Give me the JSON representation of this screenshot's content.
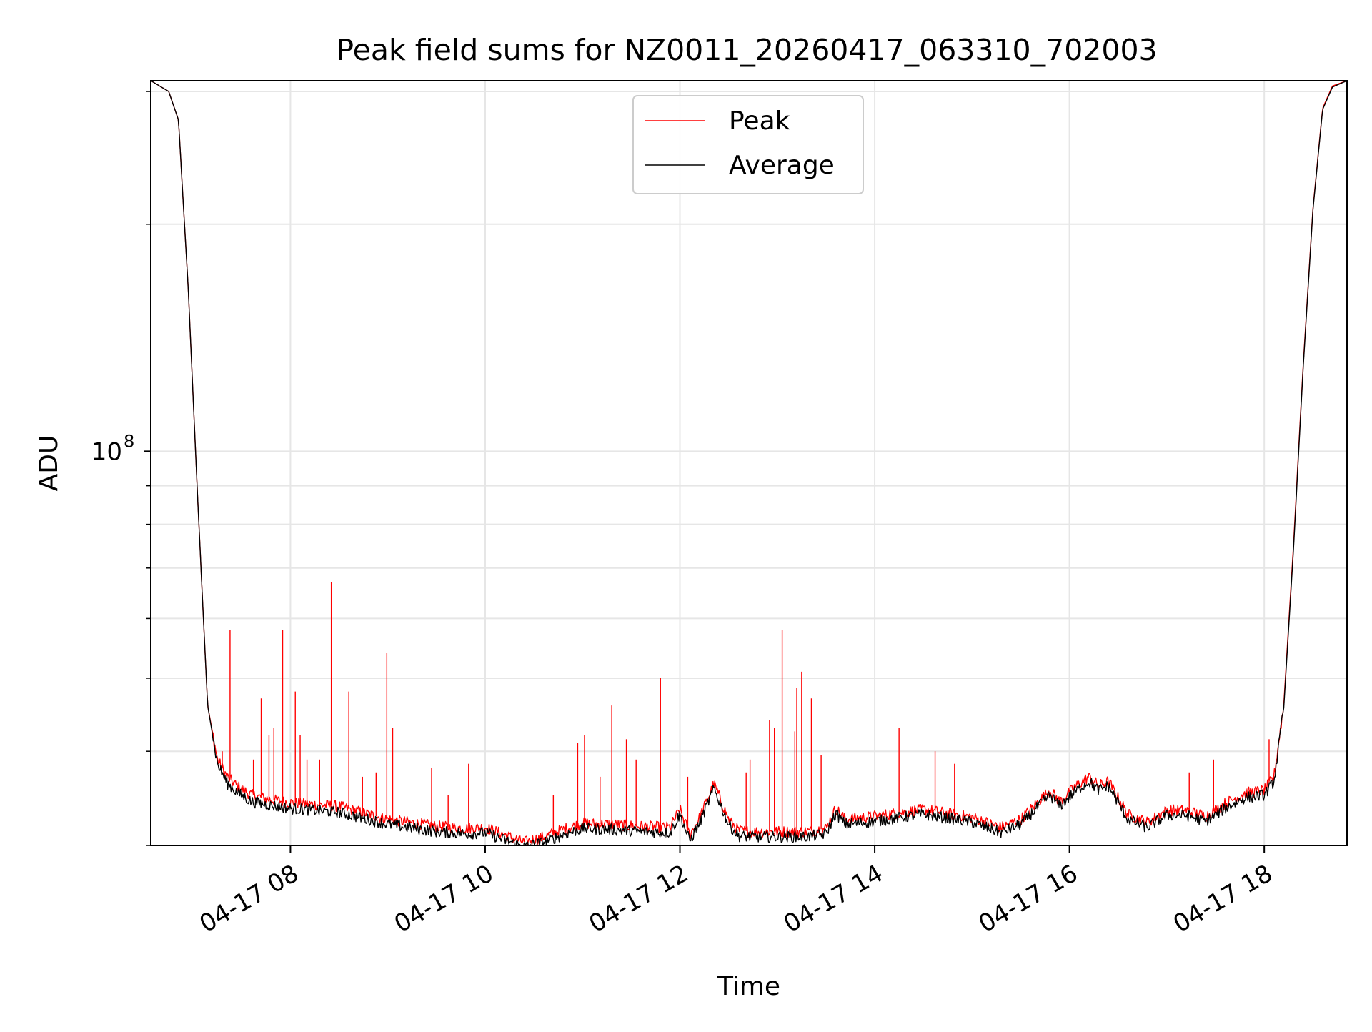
{
  "chart_data": {
    "type": "line",
    "title": "Peak field sums for NZ0011_20260417_063310_702003",
    "xlabel": "Time",
    "ylabel": "ADU",
    "yscale": "log",
    "grid": true,
    "legend_position": "top-center",
    "xlim_hours": [
      6.566,
      18.85
    ],
    "ylim": [
      30000000,
      310000000
    ],
    "x_ticks": [
      {
        "value": 8,
        "label": "04-17 08"
      },
      {
        "value": 10,
        "label": "04-17 10"
      },
      {
        "value": 12,
        "label": "04-17 12"
      },
      {
        "value": 14,
        "label": "04-17 14"
      },
      {
        "value": 16,
        "label": "04-17 16"
      },
      {
        "value": 18,
        "label": "04-17 18"
      }
    ],
    "y_major_ticks": [
      {
        "value": 100000000,
        "base": "10",
        "exponent": "8"
      }
    ],
    "y_minor_ticks": [
      30000000,
      40000000,
      50000000,
      60000000,
      70000000,
      80000000,
      90000000,
      200000000,
      300000000
    ],
    "colors": {
      "peak": "#ff0000",
      "average": "#000000",
      "grid": "#e6e6e6",
      "frame": "#000000"
    },
    "series": [
      {
        "name": "Peak",
        "color": "#ff0000",
        "x": [
          6.566,
          6.75,
          6.85,
          6.95,
          7.05,
          7.15,
          7.25,
          7.35,
          7.45,
          7.6,
          7.8,
          8.0,
          8.5,
          9.0,
          9.5,
          9.8,
          10.0,
          10.2,
          10.4,
          10.6,
          10.8,
          11.0,
          11.3,
          11.6,
          11.9,
          12.0,
          12.1,
          12.2,
          12.35,
          12.5,
          12.6,
          12.75,
          13.0,
          13.3,
          13.5,
          13.6,
          13.7,
          14.0,
          14.5,
          15.0,
          15.3,
          15.5,
          15.7,
          15.8,
          15.9,
          16.05,
          16.2,
          16.3,
          16.4,
          16.6,
          16.8,
          17.0,
          17.2,
          17.4,
          17.6,
          17.8,
          18.0,
          18.1,
          18.2,
          18.3,
          18.4,
          18.5,
          18.6,
          18.7,
          18.85
        ],
        "y": [
          310000000,
          300000000,
          275000000,
          165000000,
          85000000,
          46000000,
          39000000,
          37000000,
          36000000,
          35000000,
          34500000,
          34200000,
          33800000,
          32500000,
          31800000,
          31600000,
          31700000,
          31000000,
          30300000,
          30800000,
          31500000,
          32100000,
          32000000,
          31800000,
          31700000,
          33500000,
          31000000,
          32600000,
          36200000,
          32500000,
          31400000,
          31300000,
          31300000,
          31300000,
          31600000,
          33600000,
          32500000,
          32800000,
          33500000,
          32700000,
          31700000,
          32500000,
          34500000,
          35500000,
          34300000,
          35800000,
          37000000,
          36000000,
          36500000,
          33000000,
          32200000,
          33400000,
          33400000,
          32800000,
          34100000,
          35200000,
          35500000,
          37000000,
          46000000,
          75000000,
          130000000,
          210000000,
          285000000,
          305000000,
          310000000
        ],
        "spikes": [
          {
            "x": 7.3,
            "y": 40000000
          },
          {
            "x": 7.38,
            "y": 58000000
          },
          {
            "x": 7.62,
            "y": 39000000
          },
          {
            "x": 7.7,
            "y": 47000000
          },
          {
            "x": 7.78,
            "y": 42000000
          },
          {
            "x": 7.83,
            "y": 43000000
          },
          {
            "x": 7.92,
            "y": 58000000
          },
          {
            "x": 8.05,
            "y": 48000000
          },
          {
            "x": 8.1,
            "y": 42000000
          },
          {
            "x": 8.17,
            "y": 39000000
          },
          {
            "x": 8.3,
            "y": 39000000
          },
          {
            "x": 8.42,
            "y": 67000000
          },
          {
            "x": 8.6,
            "y": 48000000
          },
          {
            "x": 8.74,
            "y": 37000000
          },
          {
            "x": 8.88,
            "y": 37500000
          },
          {
            "x": 8.99,
            "y": 54000000
          },
          {
            "x": 9.05,
            "y": 43000000
          },
          {
            "x": 9.45,
            "y": 38000000
          },
          {
            "x": 9.62,
            "y": 35000000
          },
          {
            "x": 9.83,
            "y": 38500000
          },
          {
            "x": 10.7,
            "y": 35000000
          },
          {
            "x": 10.95,
            "y": 41000000
          },
          {
            "x": 11.02,
            "y": 42000000
          },
          {
            "x": 11.18,
            "y": 37000000
          },
          {
            "x": 11.3,
            "y": 46000000
          },
          {
            "x": 11.45,
            "y": 41500000
          },
          {
            "x": 11.55,
            "y": 39000000
          },
          {
            "x": 11.8,
            "y": 50000000
          },
          {
            "x": 12.08,
            "y": 37000000
          },
          {
            "x": 12.68,
            "y": 37500000
          },
          {
            "x": 12.72,
            "y": 39000000
          },
          {
            "x": 12.92,
            "y": 44000000
          },
          {
            "x": 12.97,
            "y": 43000000
          },
          {
            "x": 13.05,
            "y": 58000000
          },
          {
            "x": 13.18,
            "y": 42500000
          },
          {
            "x": 13.2,
            "y": 48500000
          },
          {
            "x": 13.25,
            "y": 51000000
          },
          {
            "x": 13.35,
            "y": 47000000
          },
          {
            "x": 13.45,
            "y": 39500000
          },
          {
            "x": 14.25,
            "y": 43000000
          },
          {
            "x": 14.62,
            "y": 40000000
          },
          {
            "x": 14.82,
            "y": 38500000
          },
          {
            "x": 17.23,
            "y": 37500000
          },
          {
            "x": 17.48,
            "y": 39000000
          },
          {
            "x": 18.05,
            "y": 41500000
          }
        ]
      },
      {
        "name": "Average",
        "color": "#000000",
        "x": [
          6.566,
          6.75,
          6.85,
          6.95,
          7.05,
          7.15,
          7.25,
          7.35,
          7.45,
          7.6,
          7.8,
          8.0,
          8.5,
          9.0,
          9.5,
          9.8,
          10.0,
          10.2,
          10.4,
          10.6,
          10.8,
          11.0,
          11.3,
          11.6,
          11.9,
          12.0,
          12.1,
          12.2,
          12.35,
          12.5,
          12.6,
          12.75,
          13.0,
          13.3,
          13.5,
          13.6,
          13.7,
          14.0,
          14.5,
          15.0,
          15.3,
          15.5,
          15.7,
          15.8,
          15.9,
          16.05,
          16.2,
          16.3,
          16.4,
          16.6,
          16.8,
          17.0,
          17.2,
          17.4,
          17.6,
          17.8,
          18.0,
          18.1,
          18.2,
          18.3,
          18.4,
          18.5,
          18.6,
          18.7,
          18.85
        ],
        "y": [
          310000000,
          300000000,
          275000000,
          165000000,
          85000000,
          46000000,
          38500000,
          36300000,
          35300000,
          34300000,
          33900000,
          33600000,
          33200000,
          32000000,
          31300000,
          31100000,
          31200000,
          30500000,
          29900000,
          30300000,
          31000000,
          31600000,
          31500000,
          31300000,
          31200000,
          33000000,
          30400000,
          32100000,
          35700000,
          32000000,
          30900000,
          30800000,
          30800000,
          30800000,
          31100000,
          33100000,
          32000000,
          32300000,
          33000000,
          32200000,
          31200000,
          32000000,
          34000000,
          35000000,
          33800000,
          35300000,
          36500000,
          35500000,
          36000000,
          32500000,
          31700000,
          32900000,
          32900000,
          32300000,
          33600000,
          34700000,
          35000000,
          36500000,
          45500000,
          74000000,
          129000000,
          209000000,
          284000000,
          304000000,
          310000000
        ]
      }
    ]
  }
}
